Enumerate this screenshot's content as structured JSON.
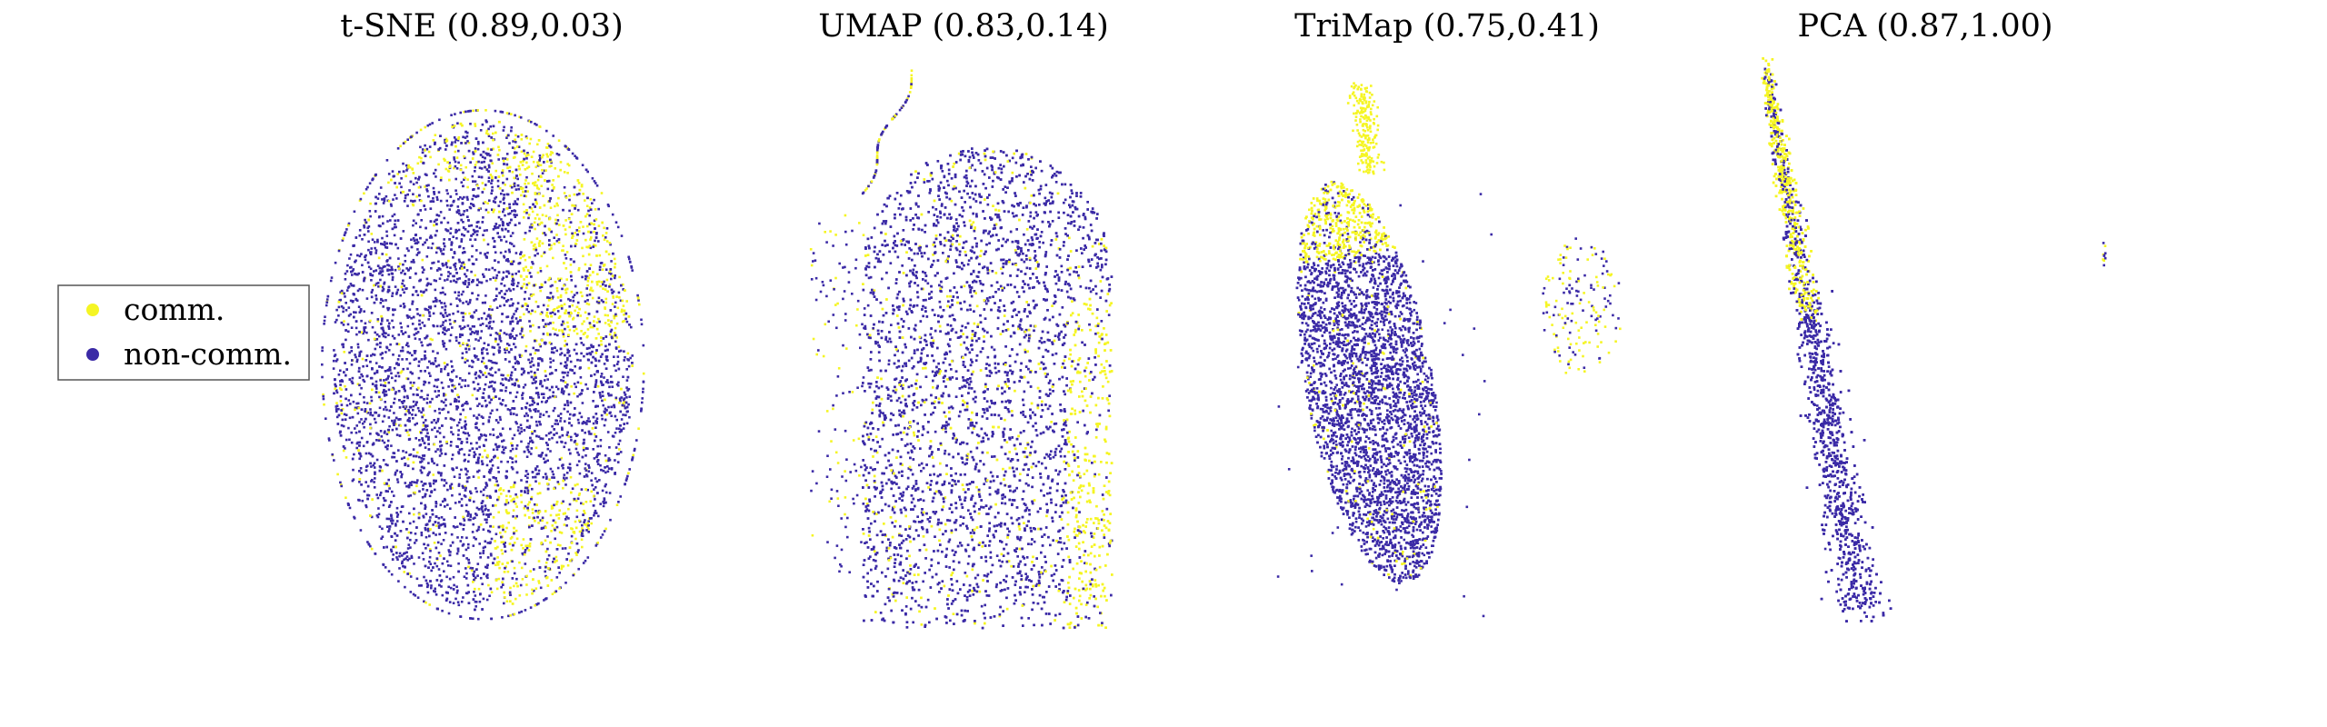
{
  "figure_title": "",
  "colors": {
    "comm": "#f5f524",
    "noncomm": "#3b2aa6"
  },
  "legend": {
    "items": [
      {
        "label": "comm.",
        "color": "#f5f524"
      },
      {
        "label": "non-comm.",
        "color": "#3b2aa6"
      }
    ],
    "placement": "left"
  },
  "chart_data": [
    {
      "type": "scatter",
      "method": "t-SNE",
      "title": "t-SNE (0.89,0.03)",
      "scores": [
        0.89,
        0.03
      ],
      "shape": "ellipse-network",
      "axes": "off",
      "series": [
        {
          "name": "non-comm.",
          "role": "majority"
        },
        {
          "name": "comm.",
          "role": "clustered-right"
        }
      ]
    },
    {
      "type": "scatter",
      "method": "UMAP",
      "title": "UMAP (0.83,0.14)",
      "scores": [
        0.83,
        0.14
      ],
      "shape": "rounded-block",
      "axes": "off",
      "series": [
        {
          "name": "non-comm.",
          "role": "majority"
        },
        {
          "name": "comm.",
          "role": "right-edge"
        }
      ]
    },
    {
      "type": "scatter",
      "method": "TriMap",
      "title": "TriMap (0.75,0.41)",
      "scores": [
        0.75,
        0.41
      ],
      "shape": "tilted-ellipse-plus-cluster",
      "axes": "off",
      "series": [
        {
          "name": "non-comm.",
          "role": "majority"
        },
        {
          "name": "comm.",
          "role": "top-tip-and-side-cluster"
        }
      ]
    },
    {
      "type": "scatter",
      "method": "PCA",
      "title": "PCA (0.87,1.00)",
      "scores": [
        0.87,
        1.0
      ],
      "shape": "diagonal-streak",
      "axes": "off",
      "series": [
        {
          "name": "non-comm.",
          "role": "majority"
        },
        {
          "name": "comm.",
          "role": "upper-streak"
        }
      ]
    }
  ]
}
